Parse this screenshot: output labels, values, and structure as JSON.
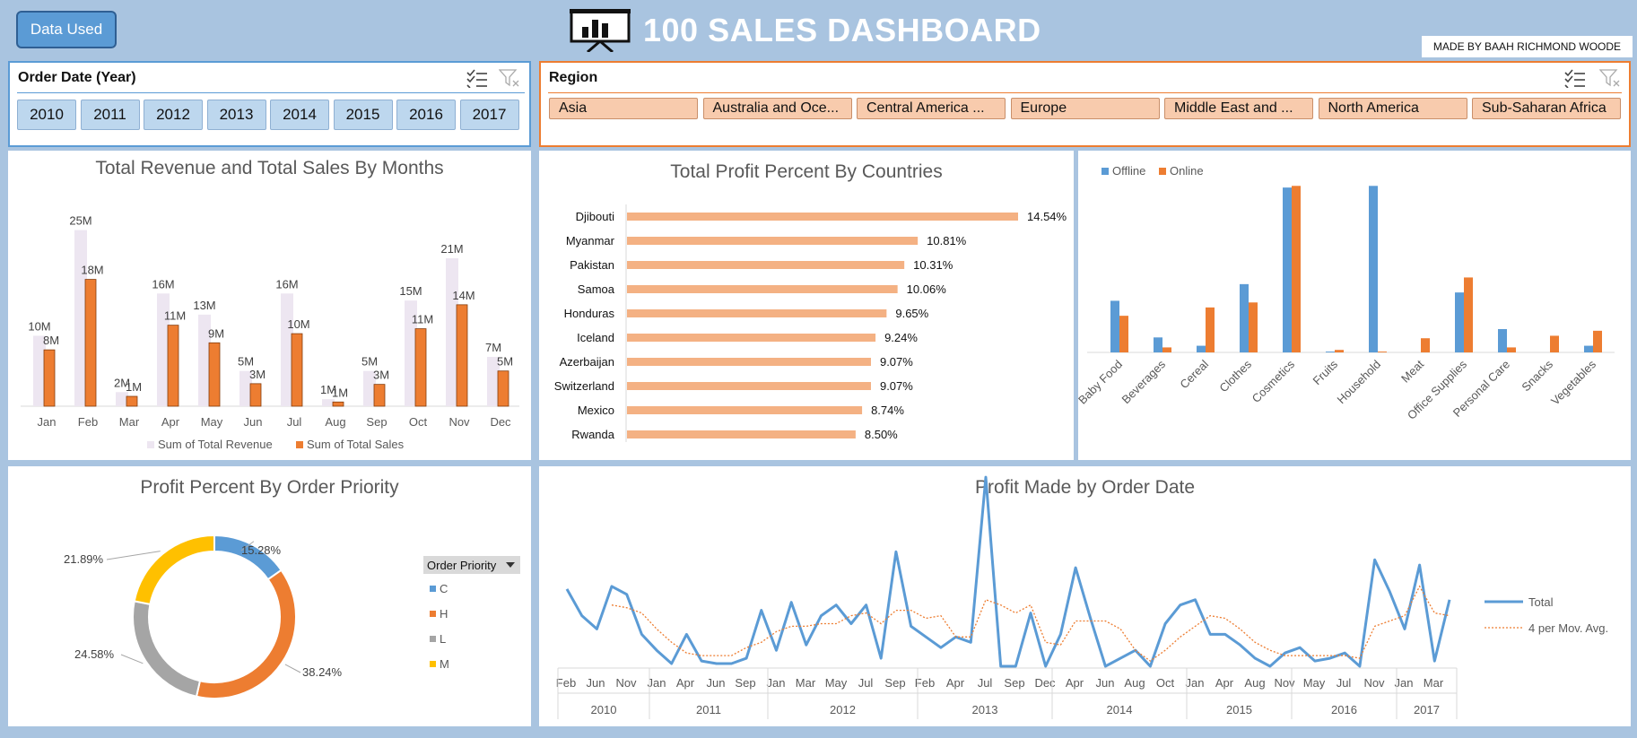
{
  "header": {
    "data_used_label": "Data Used",
    "title": "100 SALES DASHBOARD",
    "made_by": "MADE BY BAAH RICHMOND WOODE",
    "title_icon": "presentation-board-icon"
  },
  "colors": {
    "background": "#a9c4e0",
    "blue": "#5b9bd5",
    "orange": "#ed7d31",
    "gray": "#a5a5a5",
    "yellow": "#ffc000",
    "slicer_blue": "#bdd7ee",
    "slicer_orange": "#f8cbad",
    "revenue_bar": "#ede6f1",
    "profit_bar": "#f4b183"
  },
  "year_slicer": {
    "title": "Order Date (Year)",
    "items": [
      "2010",
      "2011",
      "2012",
      "2013",
      "2014",
      "2015",
      "2016",
      "2017"
    ]
  },
  "region_slicer": {
    "title": "Region",
    "items": [
      "Asia",
      "Australia and Oce...",
      "Central America ...",
      "Europe",
      "Middle East and ...",
      "North America",
      "Sub-Saharan Africa"
    ]
  },
  "revenue_chart": {
    "title": "Total Revenue and Total Sales By Months",
    "legend": [
      "Sum of Total Revenue",
      "Sum of Total Sales"
    ]
  },
  "profit_countries_chart": {
    "title": "Total Profit Percent By Countries"
  },
  "category_chart": {
    "legend": [
      "Offline",
      "Online"
    ]
  },
  "priority_chart": {
    "title": "Profit Percent By Order Priority",
    "filter_label": "Order Priority",
    "legend": [
      "C",
      "H",
      "L",
      "M"
    ]
  },
  "order_date_chart": {
    "title": "Profit Made by Order Date",
    "legend": [
      "Total",
      "4 per Mov. Avg."
    ]
  },
  "chart_data": [
    {
      "type": "bar",
      "title": "Total Revenue and Total Sales By Months",
      "categories": [
        "Jan",
        "Feb",
        "Mar",
        "Apr",
        "May",
        "Jun",
        "Jul",
        "Aug",
        "Sep",
        "Oct",
        "Nov",
        "Dec"
      ],
      "series": [
        {
          "name": "Sum of Total Revenue",
          "values": [
            10,
            25,
            2,
            16,
            13,
            5,
            16,
            1,
            5,
            15,
            21,
            7
          ],
          "labels": [
            "10M",
            "25M",
            "2M",
            "16M",
            "13M",
            "5M",
            "16M",
            "1M",
            "5M",
            "15M",
            "21M",
            "7M"
          ]
        },
        {
          "name": "Sum of Total Sales",
          "values": [
            8,
            18,
            1.4,
            11.5,
            9,
            3.2,
            10.3,
            0.6,
            3.1,
            11,
            14.4,
            5
          ],
          "labels": [
            "8M",
            "18M",
            "1M",
            "11M",
            "9M",
            "3M",
            "10M",
            "1M",
            "3M",
            "11M",
            "14M",
            "5M"
          ]
        }
      ],
      "ylim": [
        0,
        28
      ],
      "legend": "bottom"
    },
    {
      "type": "bar",
      "orientation": "horizontal",
      "title": "Total Profit Percent By Countries",
      "categories": [
        "Djibouti",
        "Myanmar",
        "Pakistan",
        "Samoa",
        "Honduras",
        "Iceland",
        "Azerbaijan",
        "Switzerland",
        "Mexico",
        "Rwanda"
      ],
      "values": [
        14.54,
        10.81,
        10.31,
        10.06,
        9.65,
        9.24,
        9.07,
        9.07,
        8.74,
        8.5
      ],
      "labels": [
        "14.54%",
        "10.81%",
        "10.31%",
        "10.06%",
        "9.65%",
        "9.24%",
        "9.07%",
        "9.07%",
        "8.74%",
        "8.50%"
      ]
    },
    {
      "type": "bar",
      "categories": [
        "Baby Food",
        "Beverages",
        "Cereal",
        "Clothes",
        "Cosmetics",
        "Fruits",
        "Household",
        "Meat",
        "Office Supplies",
        "Personal Care",
        "Snacks",
        "Vegetables"
      ],
      "series": [
        {
          "name": "Offline",
          "values": [
            31,
            9,
            4,
            41,
            99,
            0.5,
            100,
            0,
            36,
            14,
            0,
            4
          ]
        },
        {
          "name": "Online",
          "values": [
            22,
            3,
            27,
            30,
            100,
            1.5,
            0.5,
            8.5,
            45,
            3,
            10,
            13
          ]
        }
      ],
      "ylim": [
        0,
        105
      ],
      "legend": "top-left"
    },
    {
      "type": "pie",
      "title": "Profit Percent By Order Priority",
      "categories": [
        "C",
        "H",
        "L",
        "M"
      ],
      "values": [
        15.28,
        38.24,
        24.58,
        21.89
      ],
      "labels": [
        "15.28%",
        "38.24%",
        "24.58%",
        "21.89%"
      ],
      "legend": "right"
    },
    {
      "type": "line",
      "title": "Profit Made by Order Date",
      "x_ticks": [
        "Feb",
        "Jun",
        "Nov",
        "Jan",
        "Apr",
        "Jun",
        "Sep",
        "Jan",
        "Mar",
        "May",
        "Jul",
        "Sep",
        "Feb",
        "Apr",
        "Jul",
        "Sep",
        "Dec",
        "Apr",
        "Jun",
        "Aug",
        "Oct",
        "Jan",
        "Apr",
        "Aug",
        "Nov",
        "May",
        "Jul",
        "Nov",
        "Jan",
        "Mar"
      ],
      "year_groups": [
        "2010",
        "2011",
        "2012",
        "2013",
        "2014",
        "2015",
        "2016",
        "2017"
      ],
      "series": [
        {
          "name": "Total",
          "values": [
            58,
            48,
            43,
            59,
            56,
            41,
            35,
            30,
            41,
            31,
            30,
            30,
            32,
            50,
            35,
            53,
            37,
            48,
            52,
            45,
            52,
            32,
            72,
            44,
            40,
            36,
            40,
            38,
            100,
            29,
            29,
            49,
            29,
            41,
            66,
            47,
            29,
            32,
            35,
            29,
            45,
            52,
            54,
            41,
            41,
            37,
            32,
            29,
            34,
            36,
            31,
            32,
            34,
            29,
            69,
            57,
            43,
            67,
            31,
            54
          ]
        },
        {
          "name": "4 per Mov. Avg.",
          "values": [
            null,
            null,
            null,
            52,
            51,
            49,
            43,
            38,
            34,
            33,
            33,
            33,
            36,
            38,
            42,
            44,
            44,
            45,
            45,
            48,
            49,
            45,
            50,
            50,
            47,
            48,
            40,
            40,
            54,
            52,
            49,
            52,
            38,
            37,
            46,
            46,
            46,
            43,
            35,
            31,
            35,
            40,
            44,
            48,
            47,
            43,
            38,
            35,
            33,
            33,
            33,
            33,
            33,
            32,
            44,
            46,
            48,
            59,
            49,
            48
          ]
        }
      ],
      "legend": "right"
    }
  ]
}
